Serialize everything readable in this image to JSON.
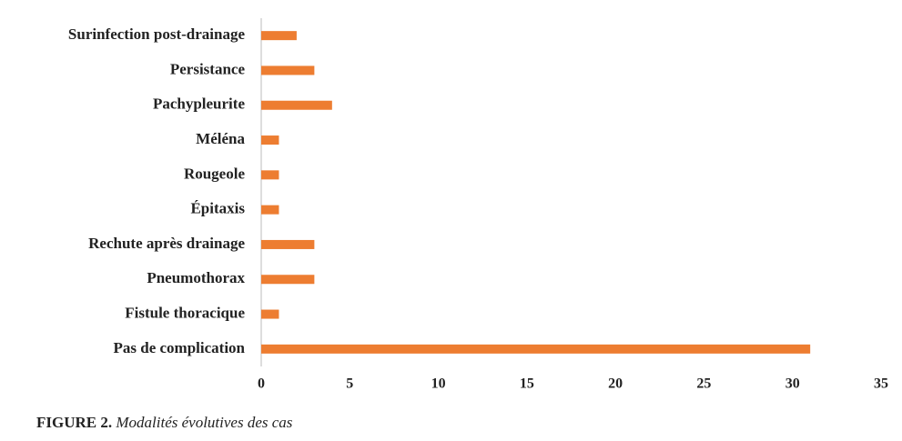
{
  "chart_data": {
    "type": "barh",
    "categories": [
      "Surinfection post-drainage",
      "Persistance",
      "Pachypleurite",
      "Méléna",
      "Rougeole",
      "Épitaxis",
      "Rechute après drainage",
      "Pneumothorax",
      "Fistule thoracique",
      "Pas de complication"
    ],
    "values": [
      2,
      3,
      4,
      1,
      1,
      1,
      3,
      3,
      1,
      31
    ],
    "color": "#ed7d31",
    "xlim": [
      0,
      35
    ],
    "xticks": [
      0,
      5,
      10,
      15,
      20,
      25,
      30,
      35
    ],
    "grid": false,
    "figure_label": "FIGURE 2.",
    "figure_caption": "Modalités évolutives des cas"
  }
}
